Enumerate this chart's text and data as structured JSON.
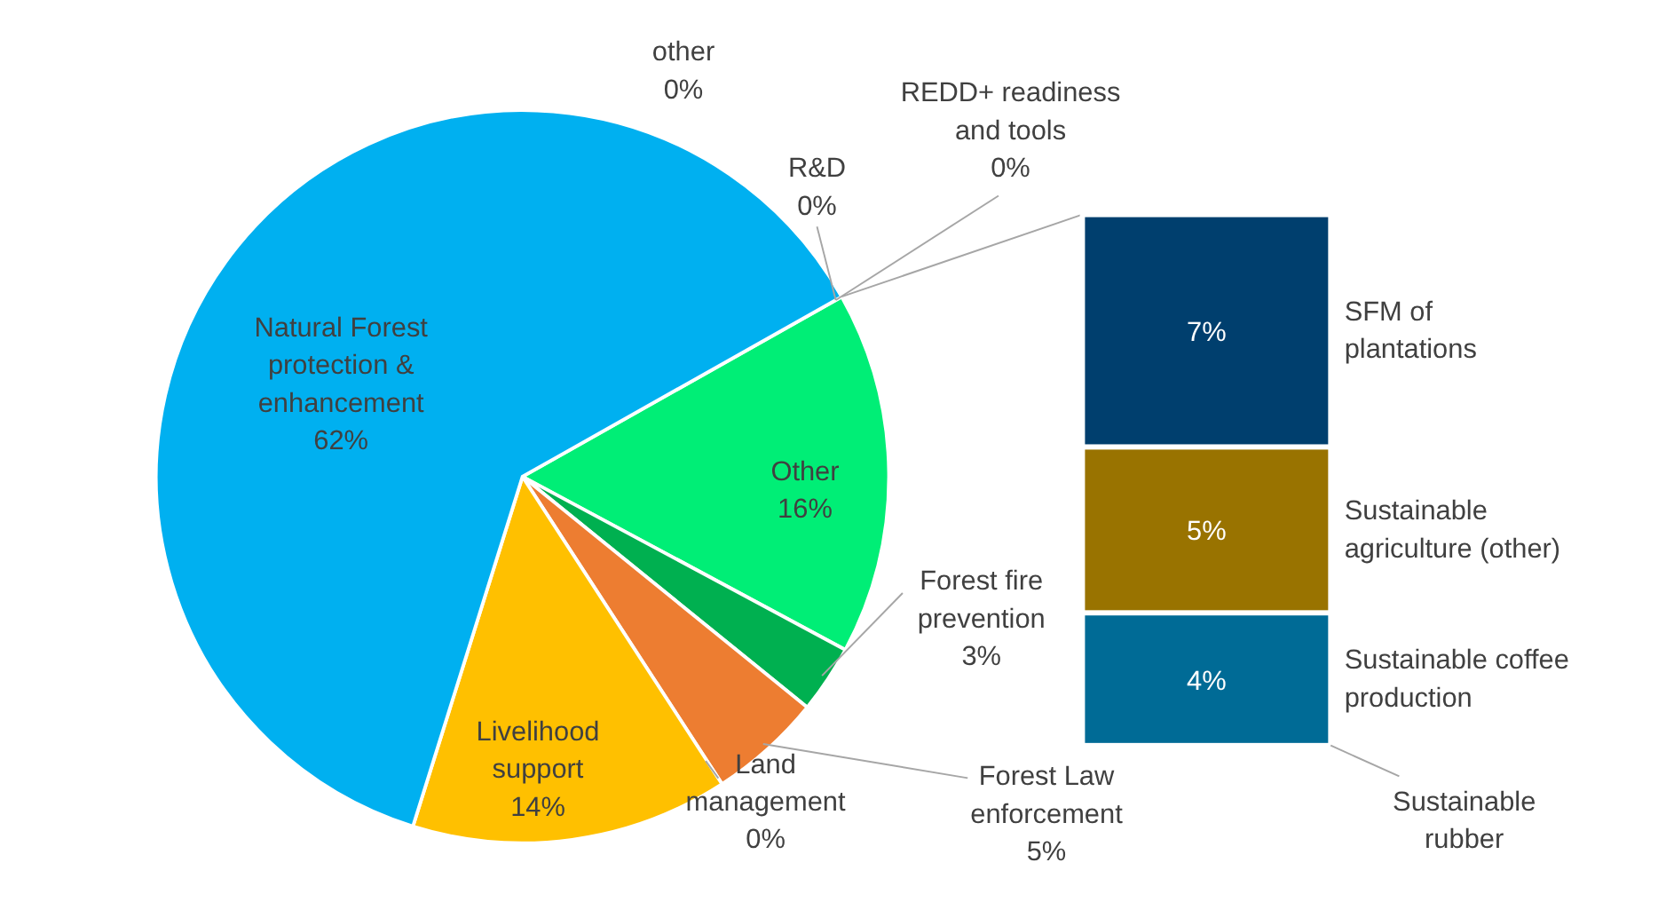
{
  "chart_data": [
    {
      "type": "pie",
      "categories": [
        "Other",
        "Forest fire prevention",
        "Forest Law enforcement",
        "Land management",
        "Livelihood support",
        "Natural Forest protection & enhancement",
        "other",
        "R&D",
        "REDD+ readiness and tools"
      ],
      "values": [
        16,
        3,
        5,
        0,
        14,
        62,
        0,
        0,
        0
      ],
      "colors": [
        "#00ee76",
        "#00b050",
        "#ed7d31",
        "#a5a5a5",
        "#ffc000",
        "#00b0f0",
        "#5b9bd5",
        "#70ad47",
        "#264478"
      ],
      "value_labels": [
        "16%",
        "3%",
        "5%",
        "0%",
        "14%",
        "62%",
        "0%",
        "0%",
        "0%"
      ]
    },
    {
      "type": "bar",
      "stacked": true,
      "categories": [
        null
      ],
      "annotations": [
        "Sustainable rubber"
      ],
      "series": [
        {
          "name": "Sustainable coffee production",
          "color": "#006b96",
          "values": [
            4
          ],
          "value_labels": [
            "4%"
          ]
        },
        {
          "name": "Sustainable agriculture (other)",
          "color": "#997300",
          "values": [
            5
          ],
          "value_labels": [
            "5%"
          ]
        },
        {
          "name": "SFM of plantations",
          "color": "#003f6e",
          "values": [
            7
          ],
          "value_labels": [
            "7%"
          ]
        }
      ]
    }
  ]
}
